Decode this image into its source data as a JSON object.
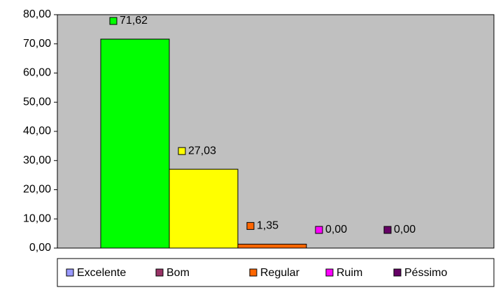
{
  "chart_data": {
    "type": "bar",
    "series": [
      {
        "name": "Excelente",
        "color": "#00ff00",
        "legend_color": "#9999ff",
        "values": [
          71.62
        ],
        "value_labels": [
          "71,62"
        ]
      },
      {
        "name": "Bom",
        "color": "#ffff00",
        "legend_color": "#993366",
        "values": [
          27.03
        ],
        "value_labels": [
          "27,03"
        ]
      },
      {
        "name": "Regular",
        "color": "#ff6600",
        "legend_color": "#ff6600",
        "values": [
          1.35
        ],
        "value_labels": [
          "1,35"
        ]
      },
      {
        "name": "Ruim",
        "color": "#ff00ff",
        "legend_color": "#ff00ff",
        "values": [
          0
        ],
        "value_labels": [
          "0,00"
        ]
      },
      {
        "name": "Péssimo",
        "color": "#660066",
        "legend_color": "#660066",
        "values": [
          0
        ],
        "value_labels": [
          "0,00"
        ]
      }
    ],
    "ylim": [
      0,
      80
    ],
    "yticks": [
      {
        "value": 0,
        "label": "0,00"
      },
      {
        "value": 10,
        "label": "10,00"
      },
      {
        "value": 20,
        "label": "20,00"
      },
      {
        "value": 30,
        "label": "30,00"
      },
      {
        "value": 40,
        "label": "40,00"
      },
      {
        "value": 50,
        "label": "50,00"
      },
      {
        "value": 60,
        "label": "60,00"
      },
      {
        "value": 70,
        "label": "70,00"
      },
      {
        "value": 80,
        "label": "80,00"
      }
    ],
    "plot_background": "#c0c0c0",
    "legend": "bottom"
  }
}
